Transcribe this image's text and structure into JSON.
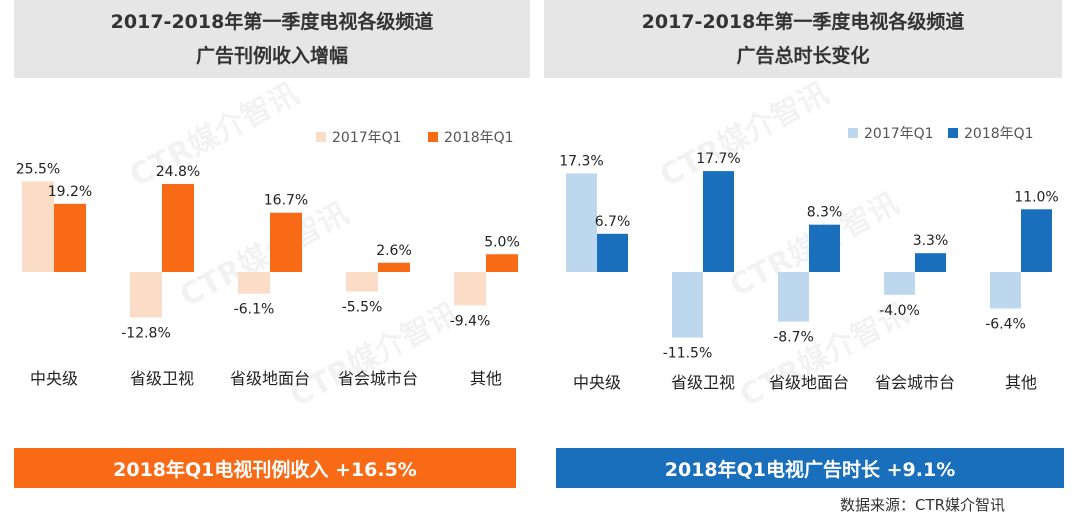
{
  "left_panel": {
    "title_line1": "2017-2018年第一季度电视各级频道",
    "title_line2": "广告刊例收入增幅",
    "summary": "2018年Q1电视刊例收入  +16.5%"
  },
  "right_panel": {
    "title_line1": "2017-2018年第一季度电视各级频道",
    "title_line2": "广告总时长变化",
    "summary": "2018年Q1电视广告时长  +9.1%"
  },
  "source_text": "数据来源：CTR媒介智讯",
  "watermark_text": "CTR媒介智讯",
  "colors": {
    "left_2017": "#fbdcc7",
    "left_2018": "#f96a16",
    "right_2017": "#bdd7ee",
    "right_2018": "#1a6fbd"
  },
  "chart_data": [
    {
      "type": "bar",
      "title": "2017-2018年第一季度电视各级频道广告刊例收入增幅",
      "categories": [
        "中央级",
        "省级卫视",
        "省级地面台",
        "省会城市台",
        "其他"
      ],
      "series": [
        {
          "name": "2017年Q1",
          "values": [
            25.5,
            -12.8,
            -6.1,
            -5.5,
            -9.4
          ],
          "labels": [
            "25.5%",
            "-12.8%",
            "-6.1%",
            "-5.5%",
            "-9.4%"
          ]
        },
        {
          "name": "2018年Q1",
          "values": [
            19.2,
            24.8,
            16.7,
            2.6,
            5.0
          ],
          "labels": [
            "19.2%",
            "24.8%",
            "16.7%",
            "2.6%",
            "5.0%"
          ]
        }
      ],
      "ylim": [
        -15,
        30
      ],
      "grid": false,
      "legend": "top-right"
    },
    {
      "type": "bar",
      "title": "2017-2018年第一季度电视各级频道广告总时长变化",
      "categories": [
        "中央级",
        "省级卫视",
        "省级地面台",
        "省会城市台",
        "其他"
      ],
      "series": [
        {
          "name": "2017年Q1",
          "values": [
            17.3,
            -11.5,
            -8.7,
            -4.0,
            -6.4
          ],
          "labels": [
            "17.3%",
            "-11.5%",
            "-8.7%",
            "-4.0%",
            "-6.4%"
          ]
        },
        {
          "name": "2018年Q1",
          "values": [
            6.7,
            17.7,
            8.3,
            3.3,
            11.0
          ],
          "labels": [
            "6.7%",
            "17.7%",
            "8.3%",
            "3.3%",
            "11.0%"
          ]
        }
      ],
      "ylim": [
        -15,
        25
      ],
      "grid": false,
      "legend": "top-right"
    }
  ]
}
